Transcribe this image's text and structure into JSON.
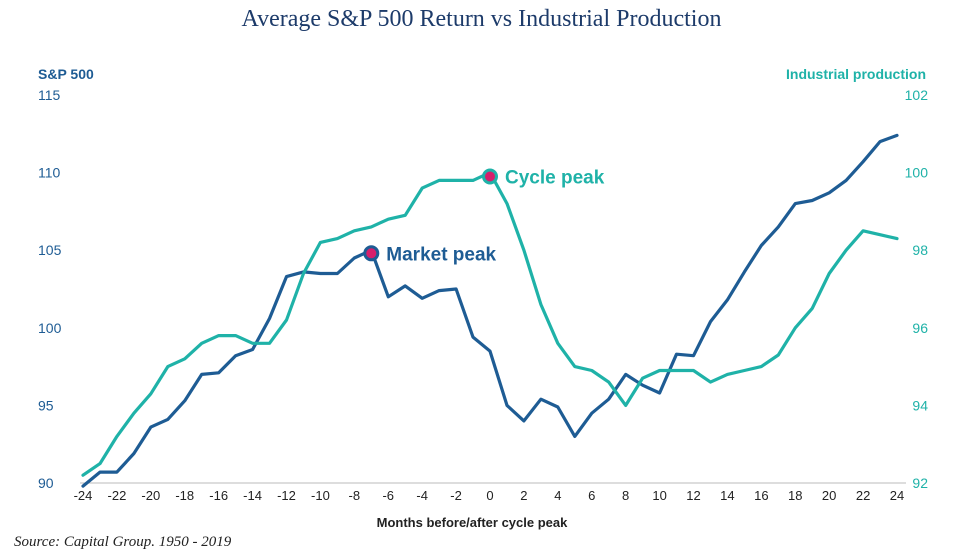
{
  "chart_data": {
    "type": "line",
    "title": "Average S&P 500 Return vs Industrial Production",
    "xlabel": "Months before/after cycle peak",
    "ylabel_left": "S&P 500",
    "ylabel_right": "Industrial production",
    "xlim": [
      -24,
      24
    ],
    "ylim_left": [
      90,
      115
    ],
    "ylim_right": [
      92,
      102
    ],
    "x_ticks": [
      -24,
      -22,
      -20,
      -18,
      -16,
      -14,
      -12,
      -10,
      -8,
      -6,
      -4,
      -2,
      0,
      2,
      4,
      6,
      8,
      10,
      12,
      14,
      16,
      18,
      20,
      22,
      24
    ],
    "y_ticks_left": [
      90,
      95,
      100,
      105,
      110,
      115
    ],
    "y_ticks_right": [
      92,
      94,
      96,
      98,
      100,
      102
    ],
    "grid": false,
    "series": [
      {
        "name": "S&P 500",
        "axis": "left",
        "color": "#1e5c94",
        "x": [
          -24,
          -23,
          -22,
          -21,
          -20,
          -19,
          -18,
          -17,
          -16,
          -15,
          -14,
          -13,
          -12,
          -11,
          -10,
          -9,
          -8,
          -7,
          -6,
          -5,
          -4,
          -3,
          -2,
          -1,
          0,
          1,
          2,
          3,
          4,
          5,
          6,
          7,
          8,
          9,
          10,
          11,
          12,
          13,
          14,
          15,
          16,
          17,
          18,
          19,
          20,
          21,
          22,
          23,
          24
        ],
        "values": [
          89.8,
          90.7,
          90.7,
          91.9,
          93.6,
          94.1,
          95.3,
          97.0,
          97.1,
          98.2,
          98.6,
          100.6,
          103.3,
          103.6,
          103.5,
          103.5,
          104.5,
          105.0,
          102.0,
          102.7,
          101.9,
          102.4,
          102.5,
          99.4,
          98.5,
          95.0,
          94.0,
          95.4,
          94.9,
          93.0,
          94.5,
          95.4,
          97.0,
          96.3,
          95.8,
          98.3,
          98.2,
          100.4,
          101.8,
          103.6,
          105.3,
          106.5,
          108.0,
          108.2,
          108.7,
          109.5,
          110.7,
          112.0,
          112.4
        ],
        "marker": {
          "x": -7,
          "value": 104.8,
          "label": "Market peak"
        }
      },
      {
        "name": "Industrial production",
        "axis": "right",
        "color": "#1fb2a8",
        "x": [
          -24,
          -23,
          -22,
          -21,
          -20,
          -19,
          -18,
          -17,
          -16,
          -15,
          -14,
          -13,
          -12,
          -11,
          -10,
          -9,
          -8,
          -7,
          -6,
          -5,
          -4,
          -3,
          -2,
          -1,
          0,
          1,
          2,
          3,
          4,
          5,
          6,
          7,
          8,
          9,
          10,
          11,
          12,
          13,
          14,
          15,
          16,
          17,
          18,
          19,
          20,
          21,
          22,
          23,
          24
        ],
        "values": [
          92.2,
          92.5,
          93.2,
          93.8,
          94.3,
          95.0,
          95.2,
          95.6,
          95.8,
          95.8,
          95.6,
          95.6,
          96.2,
          97.4,
          98.2,
          98.3,
          98.5,
          98.6,
          98.8,
          98.9,
          99.6,
          99.8,
          99.8,
          99.8,
          100.0,
          99.2,
          98.0,
          96.6,
          95.6,
          95.0,
          94.9,
          94.6,
          94.0,
          94.7,
          94.9,
          94.9,
          94.9,
          94.6,
          94.8,
          94.9,
          95.0,
          95.3,
          96.0,
          96.5,
          97.4,
          98.0,
          98.5,
          98.4,
          98.3
        ],
        "marker": {
          "x": 0,
          "value": 99.9,
          "label": "Cycle peak"
        }
      }
    ]
  },
  "source": "Source: Capital Group. 1950 - 2019"
}
